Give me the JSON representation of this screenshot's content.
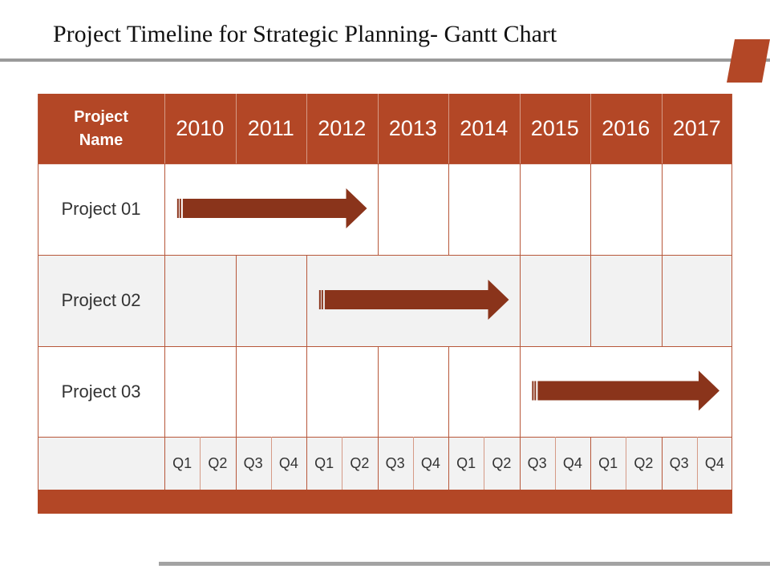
{
  "title": "Project Timeline for Strategic Planning- Gantt Chart",
  "colors": {
    "accent": "#b34726",
    "arrow": "#8a341b",
    "grid": "#b7573a",
    "row_alt": "#f2f2f2",
    "rule": "#9a9a9a"
  },
  "table": {
    "header_label": "Project Name",
    "years": [
      "2010",
      "2011",
      "2012",
      "2013",
      "2014",
      "2015",
      "2016",
      "2017"
    ],
    "quarter_labels": [
      "Q1",
      "Q2",
      "Q3",
      "Q4",
      "Q1",
      "Q2",
      "Q3",
      "Q4",
      "Q1",
      "Q2",
      "Q3",
      "Q4",
      "Q1",
      "Q2",
      "Q3",
      "Q4"
    ],
    "rows": [
      "Project 01",
      "Project 02",
      "Project 03"
    ]
  },
  "chart_data": {
    "type": "gantt",
    "title": "Project Timeline for Strategic Planning- Gantt Chart",
    "categories": [
      "Project 01",
      "Project 02",
      "Project 03"
    ],
    "x": [
      "2010",
      "2011",
      "2012",
      "2013",
      "2014",
      "2015",
      "2016",
      "2017"
    ],
    "series": [
      {
        "values": [
          [
            2010.1,
            2013.0
          ],
          [
            2012.1,
            2015.0
          ],
          [
            2015.1,
            2018.0
          ]
        ]
      }
    ]
  }
}
